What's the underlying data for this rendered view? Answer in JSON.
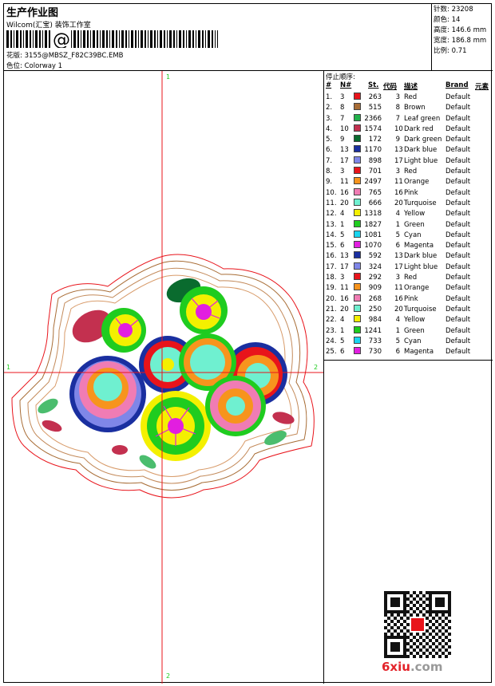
{
  "header": {
    "title": "生产作业图",
    "company": "Wilcom(汇宝) 装饰工作室",
    "pattern_label": "花版:",
    "pattern_value": "3155@MBSZ_F82C39BC.EMB",
    "colorway_label": "色位:",
    "colorway_value": "Colorway 1"
  },
  "stats": [
    {
      "label": "针数:",
      "value": "23208"
    },
    {
      "label": "颜色:",
      "value": "14"
    },
    {
      "label": "高度:",
      "value": "146.6 mm"
    },
    {
      "label": "宽度:",
      "value": "186.8 mm"
    },
    {
      "label": "比例:",
      "value": "0.71"
    }
  ],
  "canvas": {
    "marker_top": "1",
    "marker_bottom": "2",
    "marker_left": "1",
    "marker_right": "2"
  },
  "sequence": {
    "title": "停止顺序:",
    "headers": {
      "index": "#",
      "no": "N#",
      "stitches": "St.",
      "code": "代码",
      "desc": "描述",
      "brand": "Brand",
      "element": "元素"
    },
    "rows": [
      {
        "i": "1.",
        "n": "3",
        "color": "#e8141b",
        "st": "263",
        "code": "3",
        "desc": "Red",
        "brand": "Default"
      },
      {
        "i": "2.",
        "n": "8",
        "color": "#a86d36",
        "st": "515",
        "code": "8",
        "desc": "Brown",
        "brand": "Default"
      },
      {
        "i": "3.",
        "n": "7",
        "color": "#22b14c",
        "st": "2366",
        "code": "7",
        "desc": "Leaf green",
        "brand": "Default"
      },
      {
        "i": "4.",
        "n": "10",
        "color": "#c3304f",
        "st": "1574",
        "code": "10",
        "desc": "Dark red",
        "brand": "Default"
      },
      {
        "i": "5.",
        "n": "9",
        "color": "#0a6b2e",
        "st": "172",
        "code": "9",
        "desc": "Dark green",
        "brand": "Default"
      },
      {
        "i": "6.",
        "n": "13",
        "color": "#1a2fa0",
        "st": "1170",
        "code": "13",
        "desc": "Dark blue",
        "brand": "Default"
      },
      {
        "i": "7.",
        "n": "17",
        "color": "#7f86e8",
        "st": "898",
        "code": "17",
        "desc": "Light blue",
        "brand": "Default"
      },
      {
        "i": "8.",
        "n": "3",
        "color": "#e8141b",
        "st": "701",
        "code": "3",
        "desc": "Red",
        "brand": "Default"
      },
      {
        "i": "9.",
        "n": "11",
        "color": "#f7941d",
        "st": "2497",
        "code": "11",
        "desc": "Orange",
        "brand": "Default"
      },
      {
        "i": "10.",
        "n": "16",
        "color": "#f07cb4",
        "st": "765",
        "code": "16",
        "desc": "Pink",
        "brand": "Default"
      },
      {
        "i": "11.",
        "n": "20",
        "color": "#6ff0d0",
        "st": "666",
        "code": "20",
        "desc": "Turquoise",
        "brand": "Default"
      },
      {
        "i": "12.",
        "n": "4",
        "color": "#f4f000",
        "st": "1318",
        "code": "4",
        "desc": "Yellow",
        "brand": "Default"
      },
      {
        "i": "13.",
        "n": "1",
        "color": "#1fcc1f",
        "st": "1827",
        "code": "1",
        "desc": "Green",
        "brand": "Default"
      },
      {
        "i": "14.",
        "n": "5",
        "color": "#19d5f0",
        "st": "1081",
        "code": "5",
        "desc": "Cyan",
        "brand": "Default"
      },
      {
        "i": "15.",
        "n": "6",
        "color": "#e21ee0",
        "st": "1070",
        "code": "6",
        "desc": "Magenta",
        "brand": "Default"
      },
      {
        "i": "16.",
        "n": "13",
        "color": "#1a2fa0",
        "st": "592",
        "code": "13",
        "desc": "Dark blue",
        "brand": "Default"
      },
      {
        "i": "17.",
        "n": "17",
        "color": "#7f86e8",
        "st": "324",
        "code": "17",
        "desc": "Light blue",
        "brand": "Default"
      },
      {
        "i": "18.",
        "n": "3",
        "color": "#e8141b",
        "st": "292",
        "code": "3",
        "desc": "Red",
        "brand": "Default"
      },
      {
        "i": "19.",
        "n": "11",
        "color": "#f7941d",
        "st": "909",
        "code": "11",
        "desc": "Orange",
        "brand": "Default"
      },
      {
        "i": "20.",
        "n": "16",
        "color": "#f07cb4",
        "st": "268",
        "code": "16",
        "desc": "Pink",
        "brand": "Default"
      },
      {
        "i": "21.",
        "n": "20",
        "color": "#6ff0d0",
        "st": "250",
        "code": "20",
        "desc": "Turquoise",
        "brand": "Default"
      },
      {
        "i": "22.",
        "n": "4",
        "color": "#f4f000",
        "st": "984",
        "code": "4",
        "desc": "Yellow",
        "brand": "Default"
      },
      {
        "i": "23.",
        "n": "1",
        "color": "#1fcc1f",
        "st": "1241",
        "code": "1",
        "desc": "Green",
        "brand": "Default"
      },
      {
        "i": "24.",
        "n": "5",
        "color": "#19d5f0",
        "st": "733",
        "code": "5",
        "desc": "Cyan",
        "brand": "Default"
      },
      {
        "i": "25.",
        "n": "6",
        "color": "#e21ee0",
        "st": "730",
        "code": "6",
        "desc": "Magenta",
        "brand": "Default"
      }
    ]
  },
  "watermark": {
    "brand": "6xiu",
    "suffix": ".com"
  },
  "colors": {
    "crosshair": "#e8141b",
    "marker": "#1fcc1f"
  }
}
